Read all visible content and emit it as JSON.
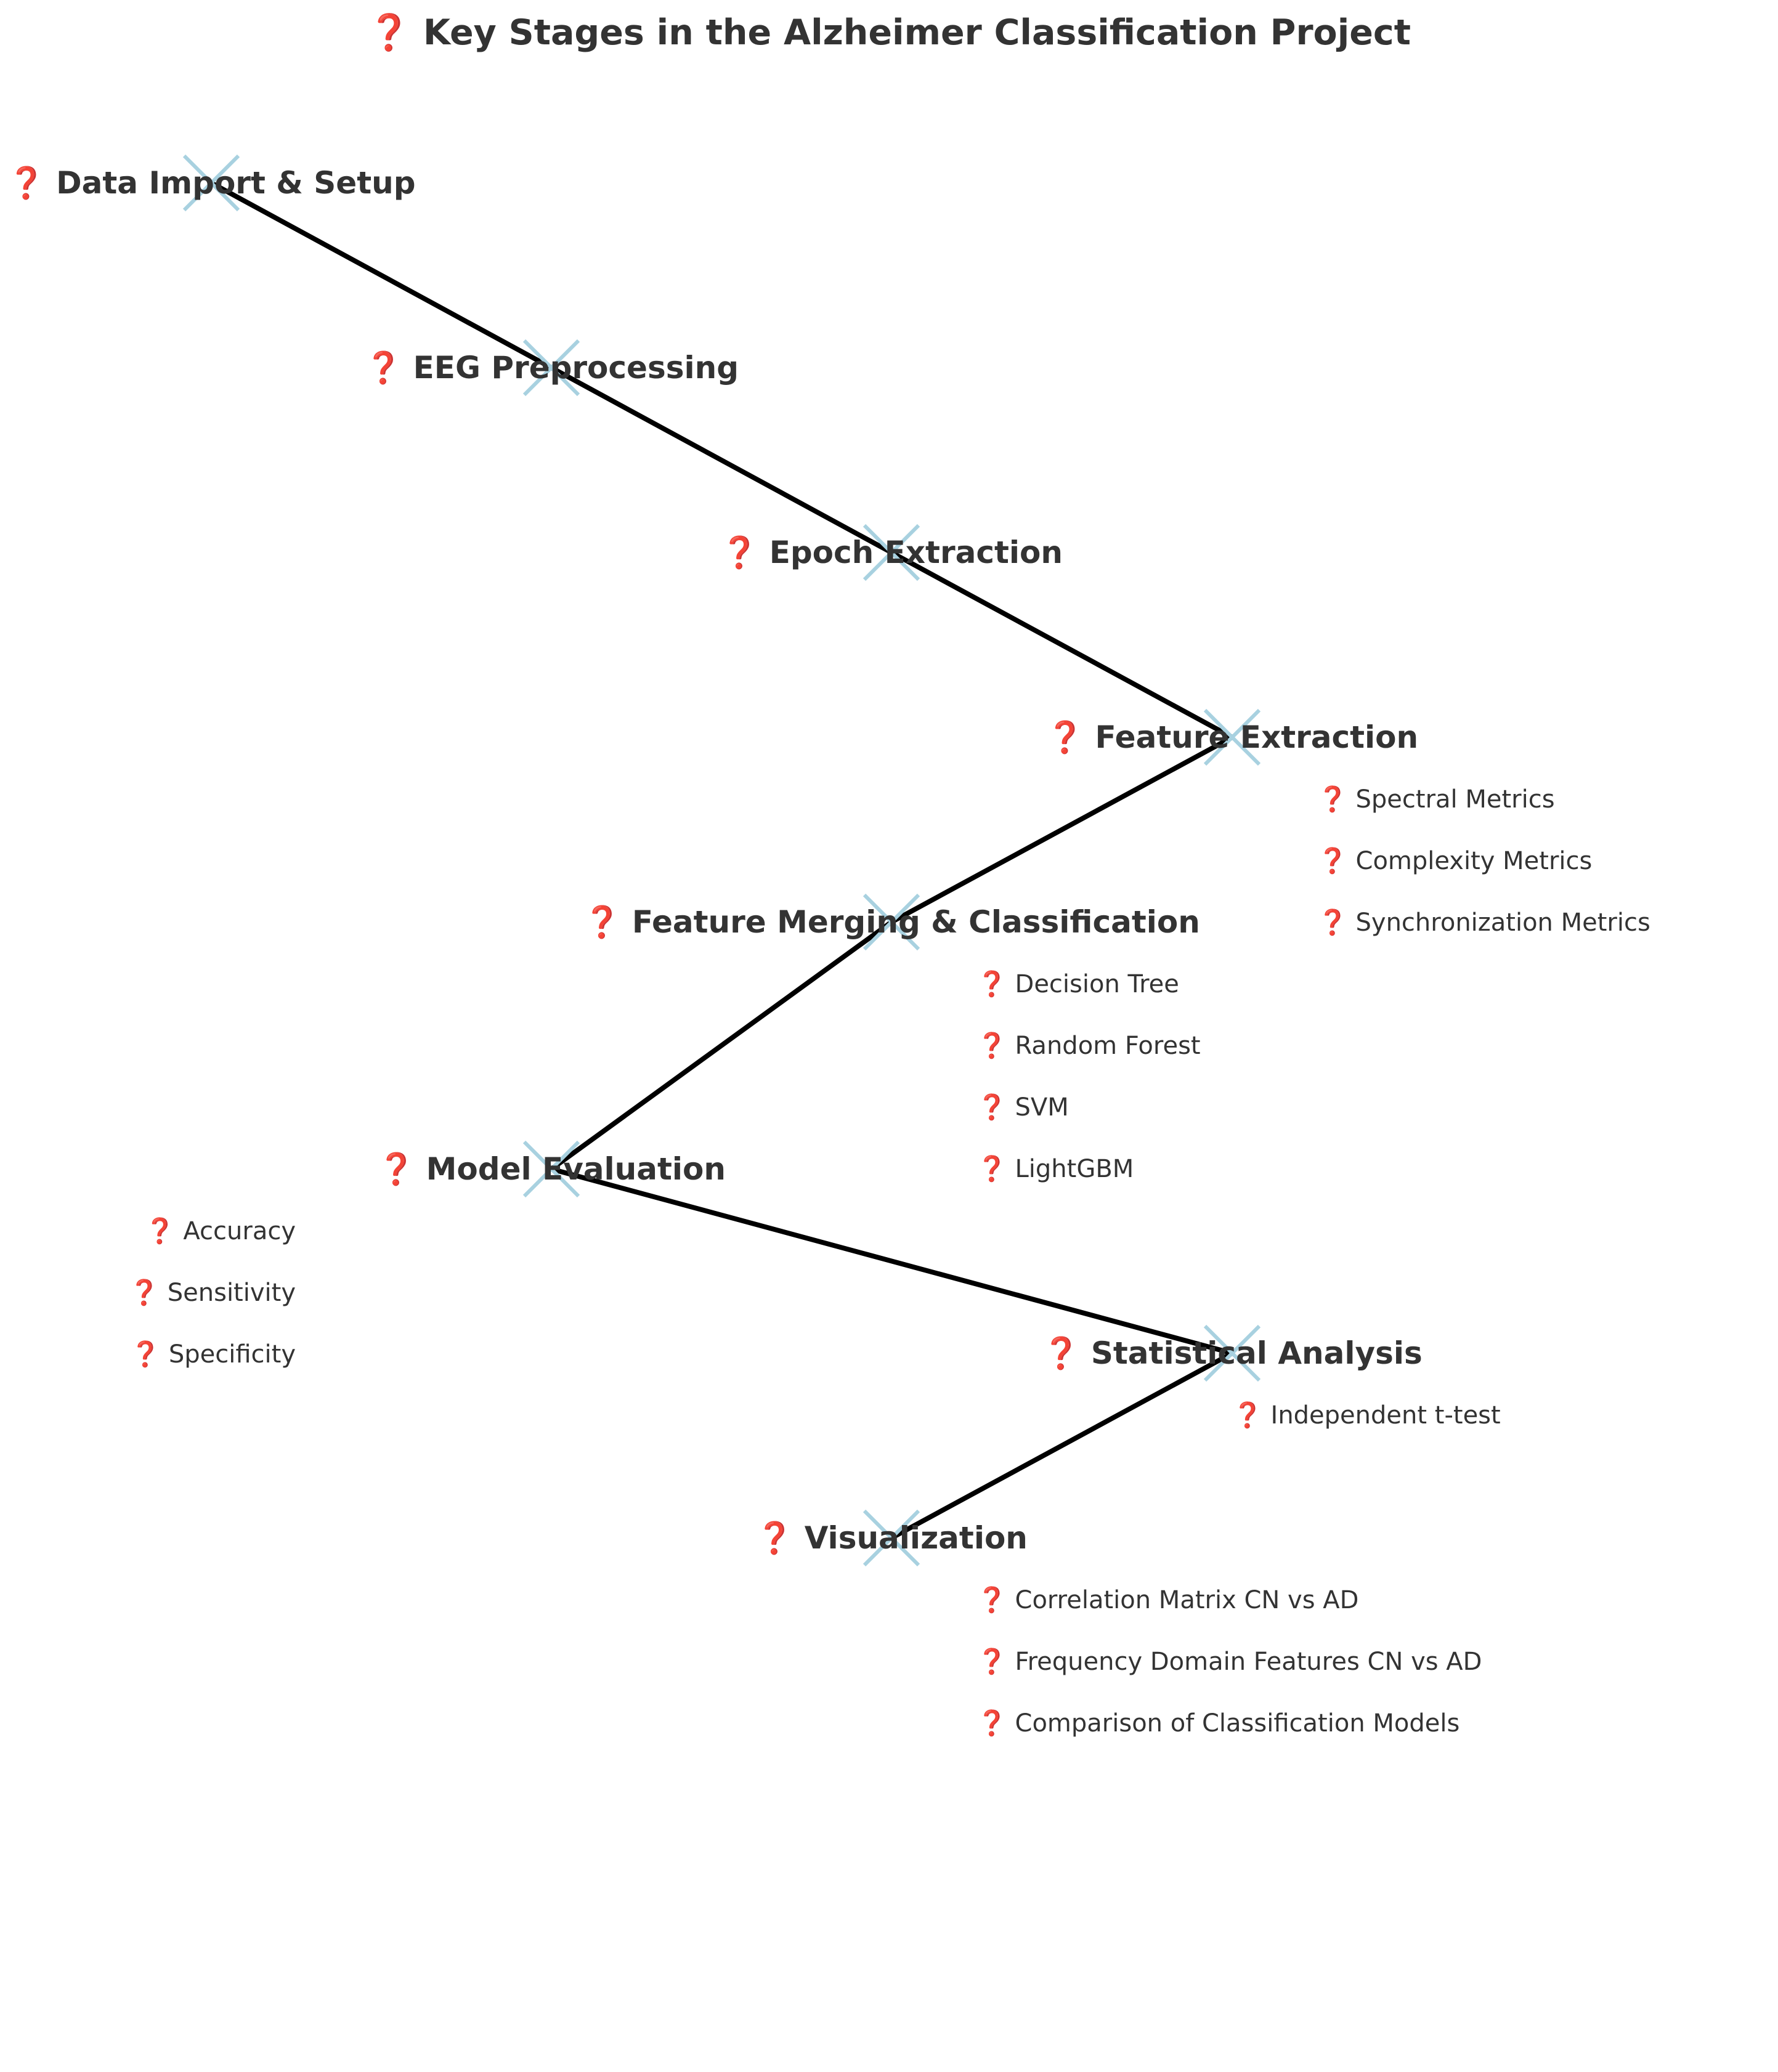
{
  "title": "❓ Key Stages in the Alzheimer Classification Project",
  "colors": {
    "text": "#333333",
    "connector": "#000000",
    "marker": "#a8d1e0",
    "background": "#ffffff"
  },
  "stages": [
    {
      "label": "❓ Data Import & Setup",
      "details": []
    },
    {
      "label": "❓ EEG Preprocessing",
      "details": []
    },
    {
      "label": "❓ Epoch Extraction",
      "details": []
    },
    {
      "label": "❓ Feature Extraction",
      "details": [
        "❓ Spectral Metrics",
        "❓ Complexity Metrics",
        "❓ Synchronization Metrics"
      ]
    },
    {
      "label": "❓ Feature Merging & Classification",
      "details": [
        "❓ Decision Tree",
        "❓ Random Forest",
        "❓ SVM",
        "❓ LightGBM"
      ]
    },
    {
      "label": "❓ Model Evaluation",
      "details": [
        "❓ Accuracy",
        "❓ Sensitivity",
        "❓ Specificity"
      ]
    },
    {
      "label": "❓ Statistical Analysis",
      "details": [
        "❓ Independent t-test"
      ]
    },
    {
      "label": "❓ Visualization",
      "details": [
        "❓ Correlation Matrix CN vs AD",
        "❓ Frequency Domain Features CN vs AD",
        "❓ Comparison of Classification Models"
      ]
    }
  ]
}
